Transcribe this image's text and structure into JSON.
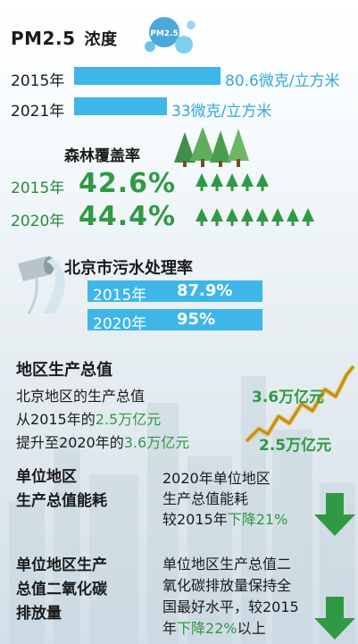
{
  "pm25": {
    "title": "PM2.5",
    "title_suffix": "浓度",
    "bubble_label": "PM2.5",
    "rows": [
      {
        "year": "2015年",
        "value_text": "80.6微克/立方米",
        "value": 80.6
      },
      {
        "year": "2021年",
        "value_text": "33微克/立方米",
        "value": 33
      }
    ]
  },
  "forest": {
    "title": "森林覆盖率",
    "rows": [
      {
        "year": "2015年",
        "value_text": "42.6%",
        "value": 42.6,
        "tree_count": 5
      },
      {
        "year": "2020年",
        "value_text": "44.4%",
        "value": 44.4,
        "tree_count": 8
      }
    ]
  },
  "sewage": {
    "title": "北京市污水处理率",
    "rows": [
      {
        "year": "2015年",
        "value_text": "87.9%"
      },
      {
        "year": "2020年",
        "value_text": "95%"
      }
    ]
  },
  "gdp": {
    "title": "地区生产总值",
    "line1": "北京地区的生产总值",
    "line2_prefix": "从",
    "line2_year": "2015",
    "line2_mid": "年的",
    "line2_value": "2.5万亿元",
    "line3_prefix": "提升至",
    "line3_year": "2020",
    "line3_mid": "年的",
    "line3_value": "3.6万亿元",
    "label_high": "3.6万亿元",
    "label_low": "2.5万亿元"
  },
  "energy": {
    "title_line1": "单位地区",
    "title_line2": "生产总值能耗",
    "body_line1": "2020年单位地区",
    "body_line2": "生产总值能耗",
    "body_line3_prefix": "较2015年",
    "body_line3_highlight": "下降21%"
  },
  "co2": {
    "title_line1": "单位地区生产",
    "title_line2": "总值二氧化碳",
    "title_line3": "排放量",
    "body_line1": "单位地区生产总值二",
    "body_line2": "氧化碳排放量保持全",
    "body_line3": "国最好水平，较2015",
    "body_line4_prefix": "年",
    "body_line4_highlight": "下降22%",
    "body_line4_suffix": "以上"
  },
  "colors": {
    "blue": "#3eb6e8",
    "green": "#2f9a44",
    "text": "#1b1b1b"
  }
}
